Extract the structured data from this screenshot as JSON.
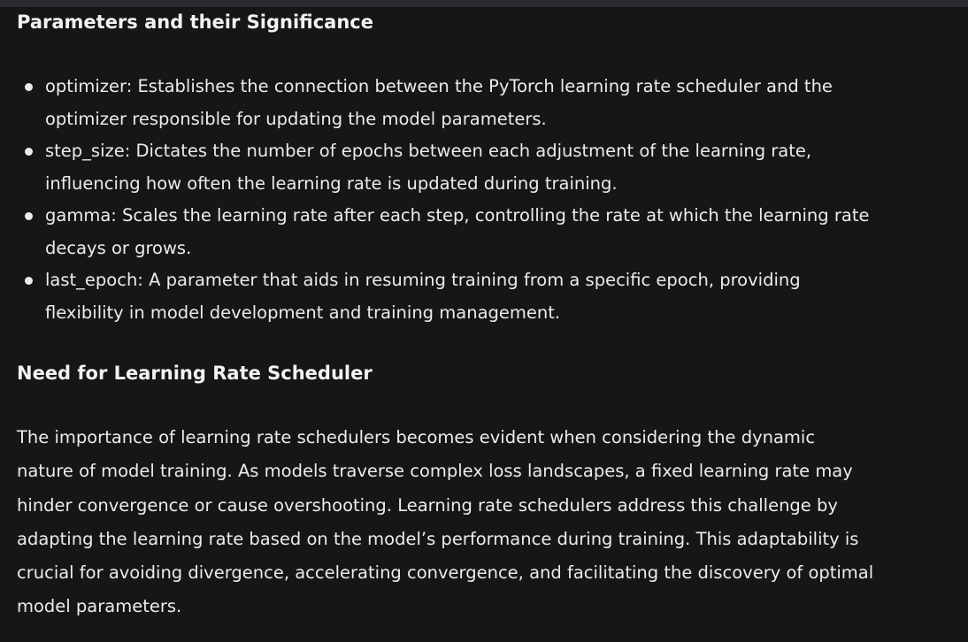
{
  "sections": {
    "params_heading": "Parameters and their Significance",
    "need_heading": "Need for Learning Rate Scheduler"
  },
  "bullets": [
    {
      "line1": "optimizer: Establishes the connection between the PyTorch learning rate scheduler and the",
      "line2": "optimizer responsible for updating the model parameters."
    },
    {
      "line1": "step_size: Dictates the number of epochs between each adjustment of the learning rate,",
      "line2": "influencing how often the learning rate is updated during training."
    },
    {
      "line1": "gamma: Scales the learning rate after each step, controlling the rate at which the learning rate",
      "line2": "decays or grows."
    },
    {
      "line1": "last_epoch: A parameter that aids in resuming training from a specific epoch, providing",
      "line2": "flexibility in model development and training management."
    }
  ],
  "paragraph": {
    "lines": [
      "The importance of learning rate schedulers becomes evident when considering the dynamic",
      "nature of model training. As models traverse complex loss landscapes, a fixed learning rate may",
      "hinder convergence or cause overshooting. Learning rate schedulers address this challenge by",
      "adapting the learning rate based on the model’s performance during training. This adaptability is",
      "crucial for avoiding divergence, accelerating convergence, and facilitating the discovery of optimal",
      "model parameters."
    ]
  }
}
